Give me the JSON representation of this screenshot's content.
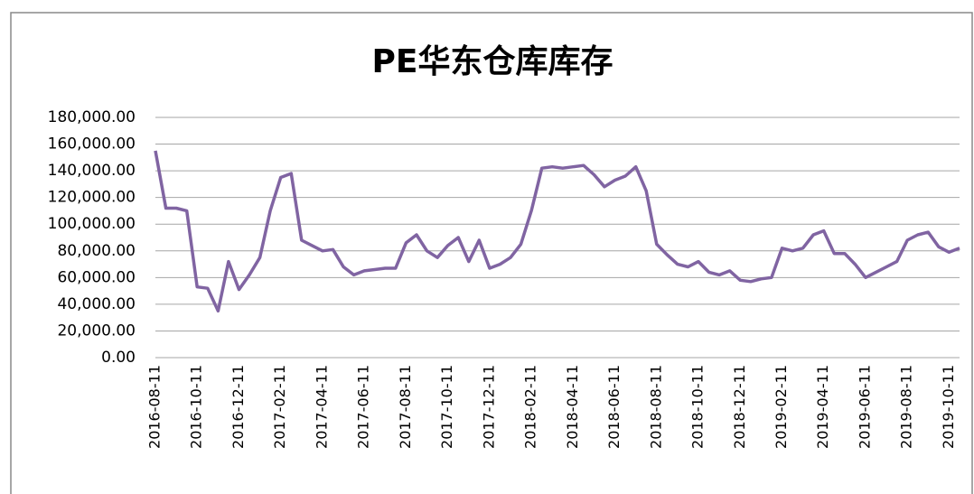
{
  "chart_data": {
    "type": "line",
    "title": "PE华东仓库库存",
    "categories": [
      "2016-08-11",
      null,
      null,
      null,
      "2016-10-11",
      null,
      null,
      null,
      "2016-12-11",
      null,
      null,
      null,
      "2017-02-11",
      null,
      null,
      null,
      "2017-04-11",
      null,
      null,
      null,
      "2017-06-11",
      null,
      null,
      null,
      "2017-08-11",
      null,
      null,
      null,
      "2017-10-11",
      null,
      null,
      null,
      "2017-12-11",
      null,
      null,
      null,
      "2018-02-11",
      null,
      null,
      null,
      "2018-04-11",
      null,
      null,
      null,
      "2018-06-11",
      null,
      null,
      null,
      "2018-08-11",
      null,
      null,
      null,
      "2018-10-11",
      null,
      null,
      null,
      "2018-12-11",
      null,
      null,
      null,
      "2019-02-11",
      null,
      null,
      null,
      "2019-04-11",
      null,
      null,
      null,
      "2019-06-11",
      null,
      null,
      null,
      "2019-08-11",
      null,
      null,
      null,
      "2019-10-11",
      null
    ],
    "series": [
      {
        "name": "PE华东仓库库存",
        "color": "#8064a2",
        "values": [
          155000,
          112000,
          112000,
          110000,
          53000,
          52000,
          35000,
          72000,
          51000,
          62000,
          75000,
          110000,
          135000,
          138000,
          88000,
          84000,
          80000,
          81000,
          68000,
          62000,
          65000,
          66000,
          67000,
          67000,
          86000,
          92000,
          80000,
          75000,
          84000,
          90000,
          72000,
          88000,
          67000,
          70000,
          75000,
          85000,
          110000,
          142000,
          143000,
          142000,
          143000,
          144000,
          137000,
          128000,
          133000,
          136000,
          143000,
          125000,
          85000,
          77000,
          70000,
          68000,
          72000,
          64000,
          62000,
          65000,
          58000,
          57000,
          59000,
          60000,
          82000,
          80000,
          82000,
          92000,
          95000,
          78000,
          78000,
          70000,
          60000,
          64000,
          68000,
          72000,
          88000,
          92000,
          94000,
          83000,
          79000,
          82000
        ]
      }
    ],
    "ylim": [
      0,
      180000
    ],
    "yticks": [
      {
        "value": 0,
        "label": "0.00"
      },
      {
        "value": 20000,
        "label": "20,000.00"
      },
      {
        "value": 40000,
        "label": "40,000.00"
      },
      {
        "value": 60000,
        "label": "60,000.00"
      },
      {
        "value": 80000,
        "label": "80,000.00"
      },
      {
        "value": 100000,
        "label": "100,000.00"
      },
      {
        "value": 120000,
        "label": "120,000.00"
      },
      {
        "value": 140000,
        "label": "140,000.00"
      },
      {
        "value": 160000,
        "label": "160,000.00"
      },
      {
        "value": 180000,
        "label": "180,000.00"
      }
    ],
    "grid": true
  }
}
